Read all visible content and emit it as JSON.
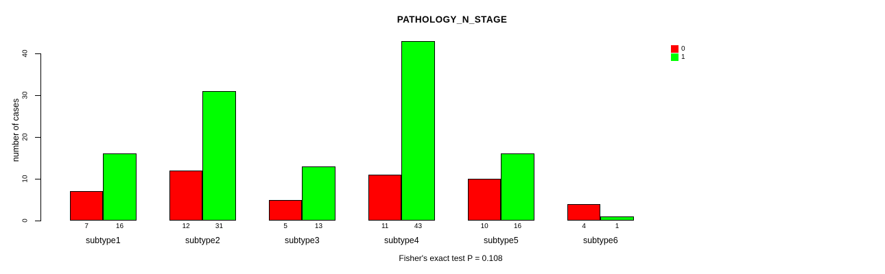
{
  "chart_data": {
    "type": "bar",
    "title": "PATHOLOGY_N_STAGE",
    "ylabel": "number of cases",
    "xlabel": "",
    "footer": "Fisher's exact test P = 0.108",
    "categories": [
      "subtype1",
      "subtype2",
      "subtype3",
      "subtype4",
      "subtype5",
      "subtype6"
    ],
    "series": [
      {
        "name": "0",
        "color": "#ff0000",
        "values": [
          7,
          12,
          5,
          11,
          10,
          4
        ]
      },
      {
        "name": "1",
        "color": "#00ff00",
        "values": [
          16,
          31,
          13,
          43,
          16,
          1
        ]
      }
    ],
    "yticks": [
      0,
      10,
      20,
      30,
      40
    ],
    "ylim": [
      0,
      43
    ],
    "grid": false,
    "legend_position": "top-right",
    "show_bar_value_labels": true,
    "axis_color": "#000000",
    "text_color": "#000000",
    "background_color": "#ffffff"
  }
}
